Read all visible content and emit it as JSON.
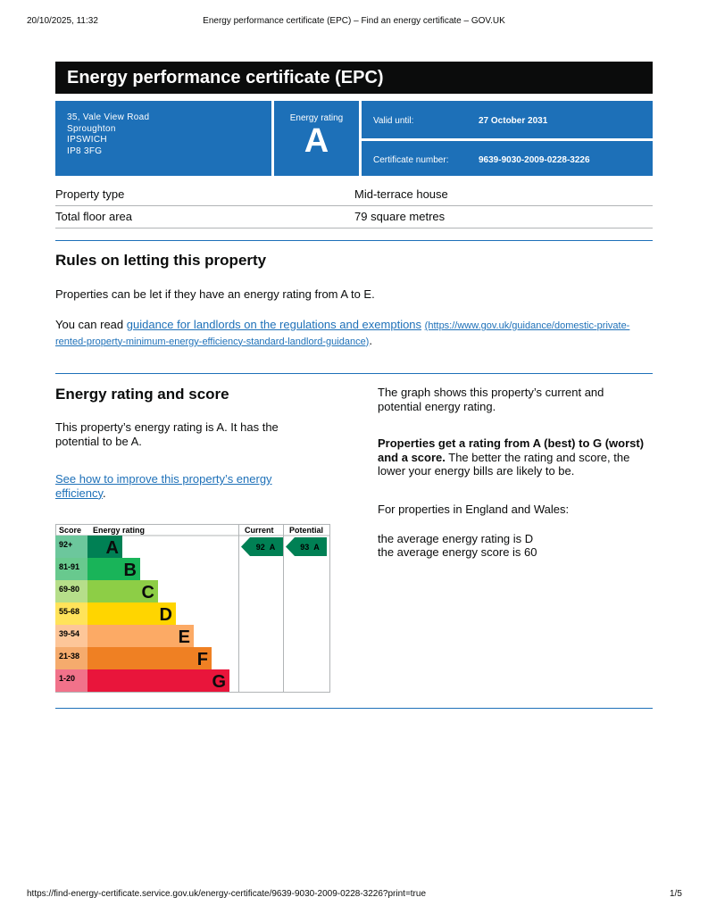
{
  "print_header": {
    "date": "20/10/2025, 11:32",
    "title": "Energy performance certificate (EPC) – Find an energy certificate – GOV.UK"
  },
  "header": {
    "title": "Energy performance certificate (EPC)"
  },
  "address": [
    "35, Vale View Road",
    "Sproughton",
    "IPSWICH",
    "IP8 3FG"
  ],
  "rating": {
    "label": "Energy rating",
    "value": "A"
  },
  "valid": {
    "label": "Valid until:",
    "value": "27 October 2031"
  },
  "certificate": {
    "label": "Certificate number:",
    "value": "9639-9030-2009-0228-3226"
  },
  "summary": {
    "rows": [
      [
        "Property type",
        "Mid-terrace house"
      ],
      [
        "Total floor area",
        "79 square metres"
      ]
    ]
  },
  "rules": {
    "heading": "Rules on letting this property",
    "text": "Properties can be let if they have an energy rating from A to E.",
    "read_prefix": "You can read ",
    "link_text": "guidance for landlords on the regulations and exemptions",
    "link_url": "(https://www.gov.uk/guidance/domestic-private-rented-property-minimum-energy-efficiency-standard-landlord-guidance)",
    "read_suffix": "."
  },
  "score": {
    "heading": "Energy rating and score",
    "text": "This property’s energy rating is A. It has the potential to be A.",
    "link_text": "See how to improve this property’s energy efficiency",
    "link_suffix": ".",
    "graph_text": "The graph shows this property’s current and potential energy rating.",
    "bold_text": "Properties get a rating from A (best) to G (worst) and a score.",
    "bold_rest": " The better the rating and score, the lower your energy bills are likely to be.",
    "region_text": "For properties in England and Wales:",
    "average_rating": "the average energy rating is D",
    "average_score": "the average energy score is 60"
  },
  "graph": {
    "headers": [
      "Score",
      "Energy rating",
      "Current",
      "Potential"
    ],
    "bands": [
      {
        "score": "92+",
        "letter": "A",
        "color": "#008054",
        "light": "#6cc79c"
      },
      {
        "score": "81-91",
        "letter": "B",
        "color": "#19b459",
        "light": "#68c98e"
      },
      {
        "score": "69-80",
        "letter": "C",
        "color": "#8dce46",
        "light": "#b6de8a"
      },
      {
        "score": "55-68",
        "letter": "D",
        "color": "#ffd500",
        "light": "#ffe35a"
      },
      {
        "score": "39-54",
        "letter": "E",
        "color": "#fcaa65",
        "light": "#fdc699"
      },
      {
        "score": "21-38",
        "letter": "F",
        "color": "#ef8023",
        "light": "#f5ab6d"
      },
      {
        "score": "1-20",
        "letter": "G",
        "color": "#e9153b",
        "light": "#f1728a"
      }
    ],
    "current": {
      "value": 92,
      "letter": "A"
    },
    "potential": {
      "value": 93,
      "letter": "A"
    }
  },
  "footer": {
    "url": "https://find-energy-certificate.service.gov.uk/energy-certificate/9639-9030-2009-0228-3226?print=true",
    "page": "1/5"
  }
}
